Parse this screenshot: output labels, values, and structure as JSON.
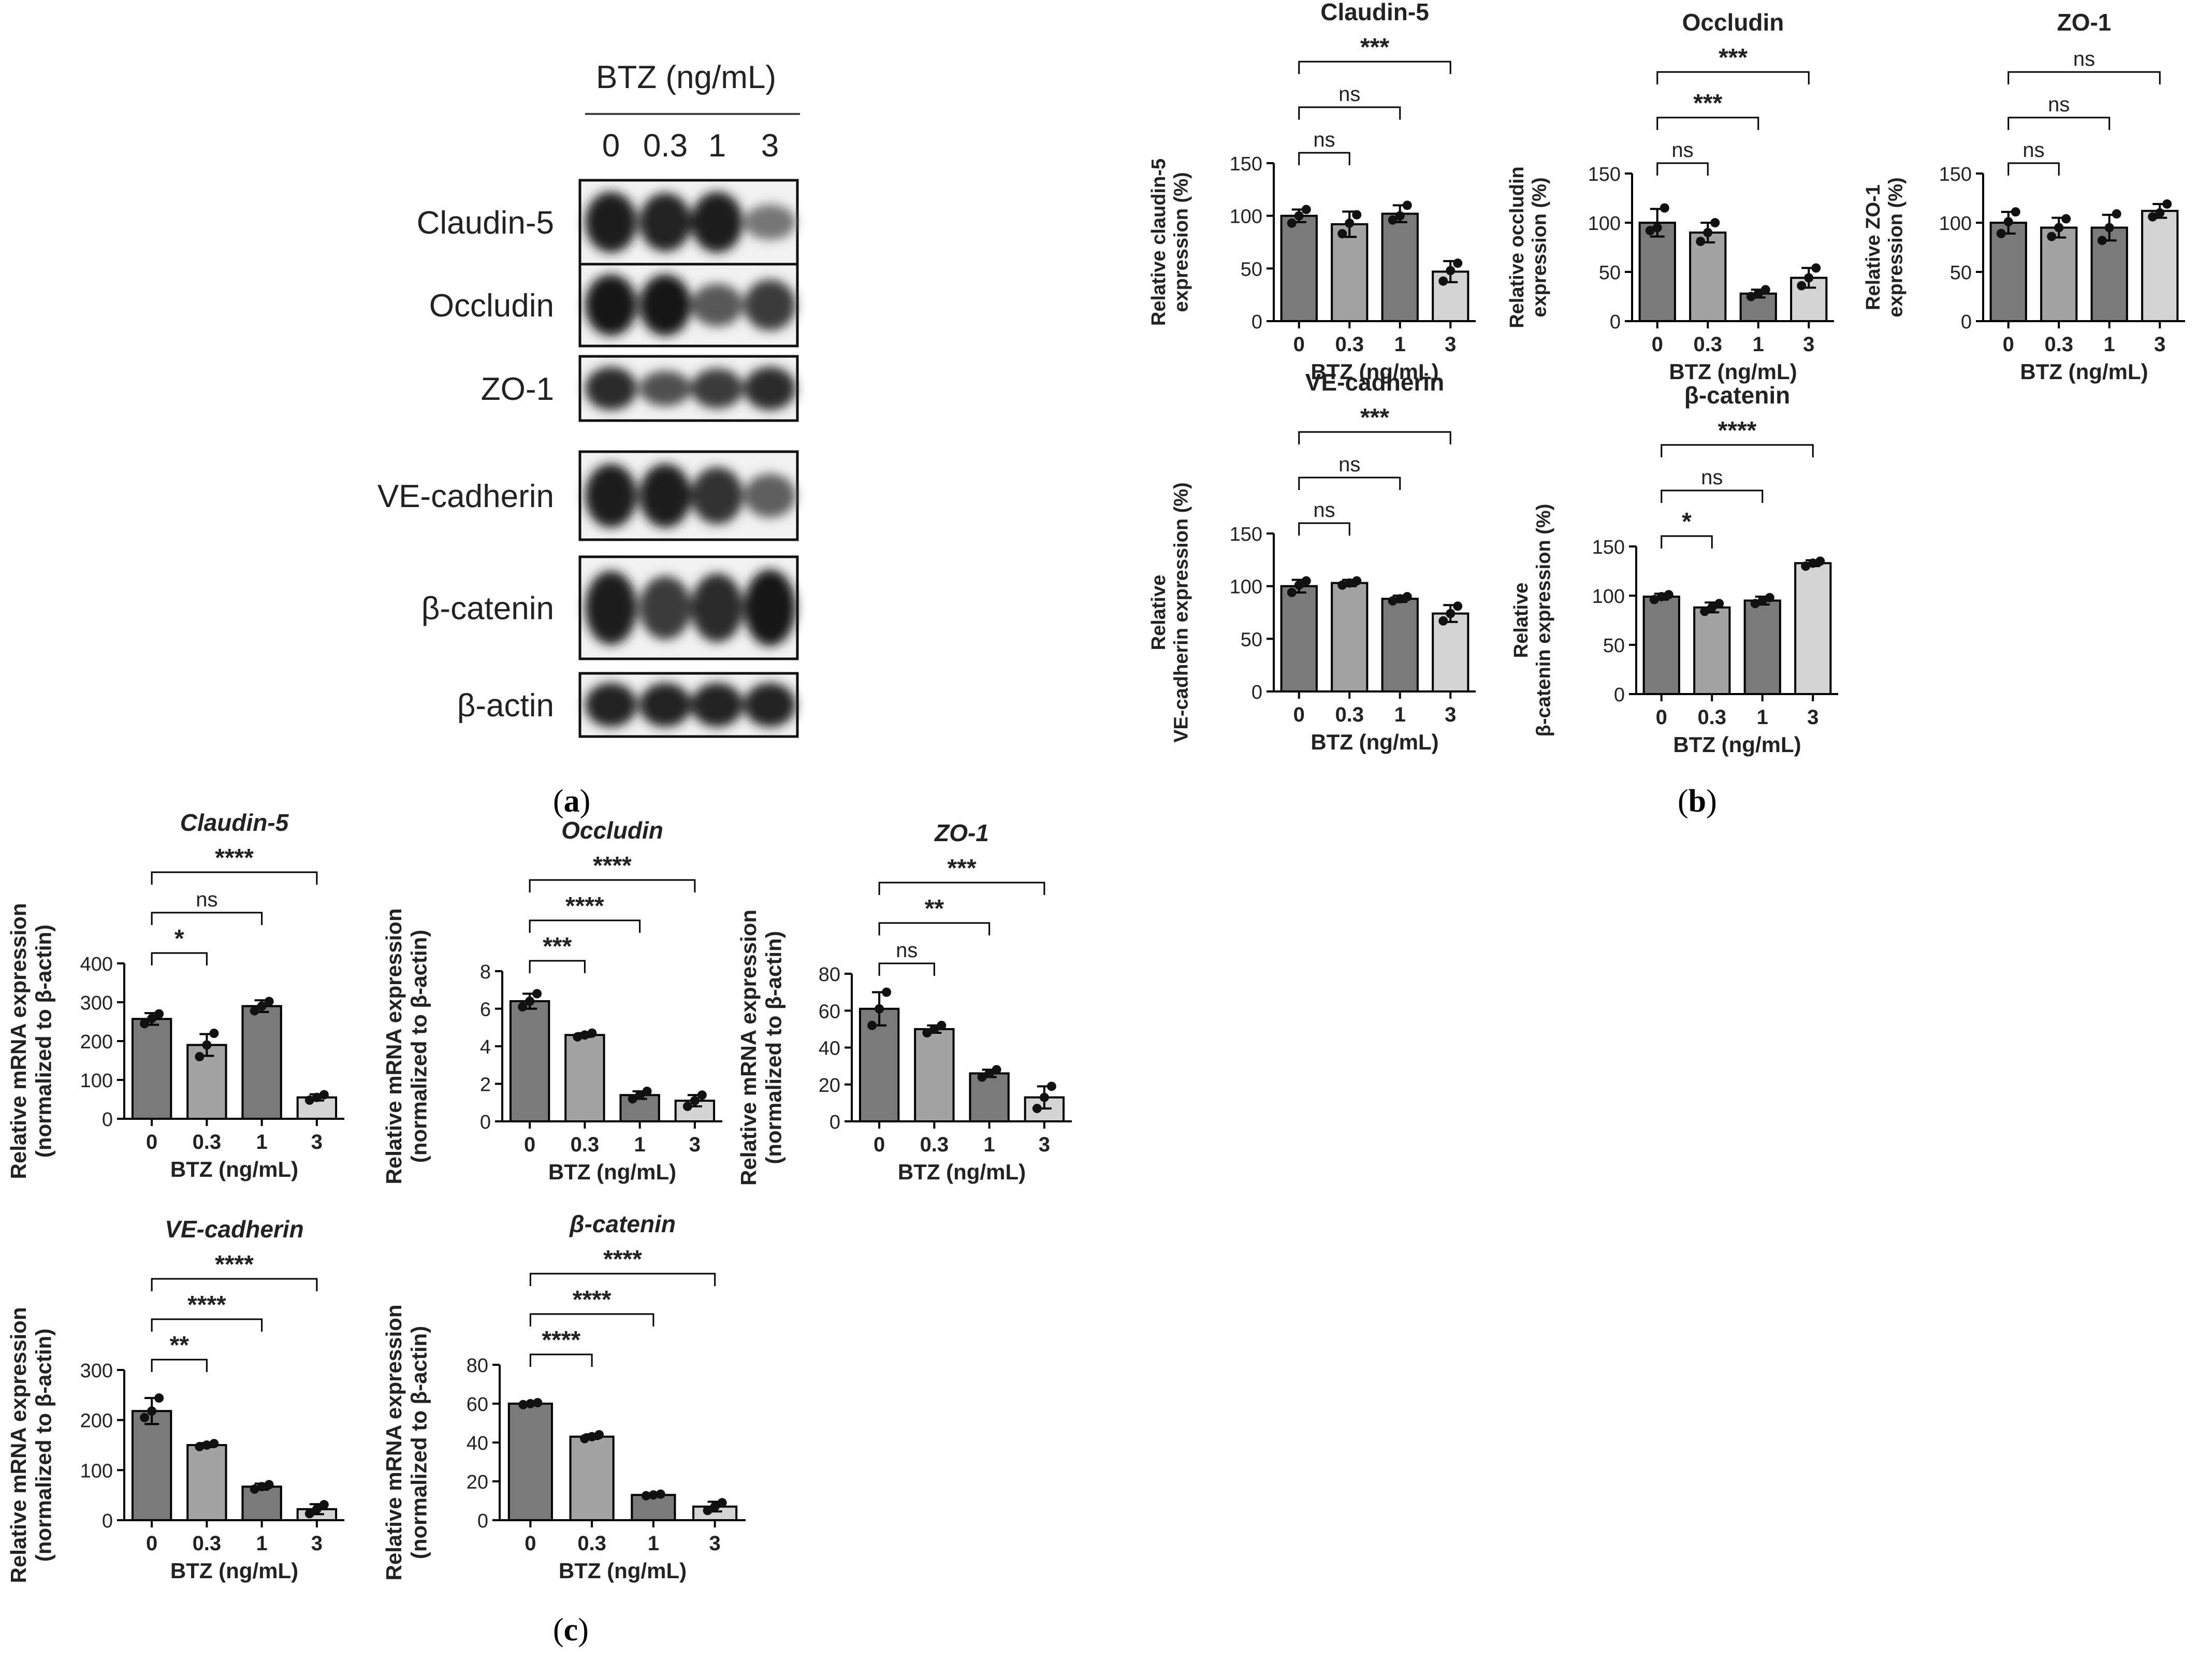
{
  "panel_labels": {
    "a": "a",
    "b": "b",
    "c": "c"
  },
  "western_blot": {
    "header": "BTZ (ng/mL)",
    "lanes": [
      "0",
      "0.3",
      "1",
      "3"
    ],
    "rows": [
      {
        "label": "Claudin-5",
        "intensity": [
          0.95,
          0.9,
          0.95,
          0.35
        ]
      },
      {
        "label": "Occludin",
        "intensity": [
          1.0,
          1.0,
          0.55,
          0.75
        ]
      },
      {
        "label": "ZO-1",
        "intensity": [
          0.85,
          0.6,
          0.75,
          0.85
        ]
      },
      {
        "label": "VE-cadherin",
        "intensity": [
          0.95,
          0.95,
          0.8,
          0.5
        ]
      },
      {
        "label": "β-catenin",
        "intensity": [
          0.95,
          0.75,
          0.85,
          1.0
        ]
      },
      {
        "label": "β-actin",
        "intensity": [
          0.9,
          0.9,
          0.9,
          0.9
        ]
      }
    ]
  },
  "chart_data": [
    {
      "type": "bar",
      "panel": "b",
      "title": "Claudin-5",
      "ylabel": "Relative claudin-5 expression (%)",
      "xlabel": "BTZ (ng/mL)",
      "categories": [
        "0",
        "0.3",
        "1",
        "3"
      ],
      "values": [
        100,
        92,
        102,
        47
      ],
      "errors": [
        6,
        12,
        8,
        10
      ],
      "points": [
        [
          93,
          100,
          106
        ],
        [
          83,
          93,
          101
        ],
        [
          96,
          100,
          110
        ],
        [
          38,
          48,
          55
        ]
      ],
      "ylim": [
        0,
        150
      ],
      "yticks": [
        0,
        50,
        100,
        150
      ],
      "colors": [
        "#7a7a7a",
        "#a3a3a3",
        "#7a7a7a",
        "#d4d4d4"
      ],
      "significance": [
        {
          "to": 1,
          "label": "ns"
        },
        {
          "to": 2,
          "label": "ns"
        },
        {
          "to": 3,
          "label": "***"
        }
      ]
    },
    {
      "type": "bar",
      "panel": "b",
      "title": "Occludin",
      "ylabel": "Relative occludin expression (%)",
      "xlabel": "BTZ (ng/mL)",
      "categories": [
        "0",
        "0.3",
        "1",
        "3"
      ],
      "values": [
        100,
        90,
        28,
        44
      ],
      "errors": [
        14,
        10,
        4,
        10
      ],
      "points": [
        [
          92,
          95,
          115
        ],
        [
          81,
          90,
          100
        ],
        [
          25,
          28,
          32
        ],
        [
          36,
          44,
          54
        ]
      ],
      "ylim": [
        0,
        150
      ],
      "yticks": [
        0,
        50,
        100,
        150
      ],
      "colors": [
        "#7a7a7a",
        "#a3a3a3",
        "#7a7a7a",
        "#d4d4d4"
      ],
      "significance": [
        {
          "to": 1,
          "label": "ns"
        },
        {
          "to": 2,
          "label": "***"
        },
        {
          "to": 3,
          "label": "***"
        }
      ]
    },
    {
      "type": "bar",
      "panel": "b",
      "title": "ZO-1",
      "ylabel": "Relative ZO-1 expression (%)",
      "xlabel": "BTZ (ng/mL)",
      "categories": [
        "0",
        "0.3",
        "1",
        "3"
      ],
      "values": [
        100,
        95,
        95,
        112
      ],
      "errors": [
        11,
        10,
        13,
        7
      ],
      "points": [
        [
          89,
          101,
          111
        ],
        [
          86,
          95,
          104
        ],
        [
          82,
          95,
          109
        ],
        [
          106,
          110,
          119
        ]
      ],
      "ylim": [
        0,
        150
      ],
      "yticks": [
        0,
        50,
        100,
        150
      ],
      "colors": [
        "#7a7a7a",
        "#a3a3a3",
        "#7a7a7a",
        "#d4d4d4"
      ],
      "significance": [
        {
          "to": 1,
          "label": "ns"
        },
        {
          "to": 2,
          "label": "ns"
        },
        {
          "to": 3,
          "label": "ns"
        }
      ]
    },
    {
      "type": "bar",
      "panel": "b",
      "title": "VE-cadherin",
      "ylabel": "Relative VE-cadherin expression (%)",
      "xlabel": "BTZ (ng/mL)",
      "categories": [
        "0",
        "0.3",
        "1",
        "3"
      ],
      "values": [
        100,
        103,
        88,
        74
      ],
      "errors": [
        6,
        3,
        3,
        8
      ],
      "points": [
        [
          94,
          101,
          105
        ],
        [
          101,
          103,
          105
        ],
        [
          86,
          88,
          90
        ],
        [
          67,
          74,
          81
        ]
      ],
      "ylim": [
        0,
        150
      ],
      "yticks": [
        0,
        50,
        100,
        150
      ],
      "colors": [
        "#7a7a7a",
        "#a3a3a3",
        "#7a7a7a",
        "#d4d4d4"
      ],
      "significance": [
        {
          "to": 1,
          "label": "ns"
        },
        {
          "to": 2,
          "label": "ns"
        },
        {
          "to": 3,
          "label": "***"
        }
      ]
    },
    {
      "type": "bar",
      "panel": "b",
      "title": "β-catenin",
      "ylabel": "Relative β-catenin expression (%)",
      "xlabel": "BTZ (ng/mL)",
      "categories": [
        "0",
        "0.3",
        "1",
        "3"
      ],
      "values": [
        99,
        88,
        95,
        133
      ],
      "errors": [
        3,
        5,
        4,
        3
      ],
      "points": [
        [
          96,
          99,
          101
        ],
        [
          84,
          88,
          92
        ],
        [
          92,
          95,
          98
        ],
        [
          130,
          133,
          135
        ]
      ],
      "ylim": [
        0,
        150
      ],
      "yticks": [
        0,
        50,
        100,
        150
      ],
      "colors": [
        "#7a7a7a",
        "#a3a3a3",
        "#7a7a7a",
        "#d4d4d4"
      ],
      "significance": [
        {
          "to": 1,
          "label": "*"
        },
        {
          "to": 2,
          "label": "ns"
        },
        {
          "to": 3,
          "label": "****"
        }
      ]
    },
    {
      "type": "bar",
      "panel": "c",
      "title": "Claudin-5",
      "ylabel": "Relative mRNA expression (normalized to β-actin)",
      "xlabel": "BTZ (ng/mL)",
      "categories": [
        "0",
        "0.3",
        "1",
        "3"
      ],
      "values": [
        257,
        190,
        290,
        55
      ],
      "errors": [
        15,
        28,
        15,
        8
      ],
      "points": [
        [
          245,
          258,
          270
        ],
        [
          160,
          190,
          220
        ],
        [
          278,
          290,
          302
        ],
        [
          48,
          55,
          62
        ]
      ],
      "ylim": [
        0,
        400
      ],
      "yticks": [
        0,
        100,
        200,
        300,
        400
      ],
      "colors": [
        "#7a7a7a",
        "#a3a3a3",
        "#7a7a7a",
        "#d4d4d4"
      ],
      "significance": [
        {
          "to": 1,
          "label": "*"
        },
        {
          "to": 2,
          "label": "ns"
        },
        {
          "to": 3,
          "label": "****"
        }
      ]
    },
    {
      "type": "bar",
      "panel": "c",
      "title": "Occludin",
      "ylabel": "Relative mRNA expression (normalized to β-actin)",
      "xlabel": "BTZ (ng/mL)",
      "categories": [
        "0",
        "0.3",
        "1",
        "3"
      ],
      "values": [
        6.4,
        4.6,
        1.4,
        1.1
      ],
      "errors": [
        0.4,
        0.1,
        0.2,
        0.3
      ],
      "points": [
        [
          6.1,
          6.4,
          6.8
        ],
        [
          4.5,
          4.6,
          4.7
        ],
        [
          1.2,
          1.4,
          1.6
        ],
        [
          0.8,
          1.1,
          1.4
        ]
      ],
      "ylim": [
        0,
        8
      ],
      "yticks": [
        0,
        2,
        4,
        6,
        8
      ],
      "colors": [
        "#7a7a7a",
        "#a3a3a3",
        "#7a7a7a",
        "#d4d4d4"
      ],
      "significance": [
        {
          "to": 1,
          "label": "***"
        },
        {
          "to": 2,
          "label": "****"
        },
        {
          "to": 3,
          "label": "****"
        }
      ]
    },
    {
      "type": "bar",
      "panel": "c",
      "title": "ZO-1",
      "ylabel": "Relative mRNA expression (normalized to β-actin)",
      "xlabel": "BTZ (ng/mL)",
      "categories": [
        "0",
        "0.3",
        "1",
        "3"
      ],
      "values": [
        61,
        50,
        26,
        13
      ],
      "errors": [
        9,
        2,
        2,
        6
      ],
      "points": [
        [
          52,
          61,
          70
        ],
        [
          48,
          50,
          52
        ],
        [
          24,
          26,
          28
        ],
        [
          7,
          13,
          19
        ]
      ],
      "ylim": [
        0,
        80
      ],
      "yticks": [
        0,
        20,
        40,
        60,
        80
      ],
      "colors": [
        "#7a7a7a",
        "#a3a3a3",
        "#7a7a7a",
        "#d4d4d4"
      ],
      "significance": [
        {
          "to": 1,
          "label": "ns"
        },
        {
          "to": 2,
          "label": "**"
        },
        {
          "to": 3,
          "label": "***"
        }
      ]
    },
    {
      "type": "bar",
      "panel": "c",
      "title": "VE-cadherin",
      "ylabel": "Relative mRNA expression (normalized to β-actin)",
      "xlabel": "BTZ (ng/mL)",
      "categories": [
        "0",
        "0.3",
        "1",
        "3"
      ],
      "values": [
        218,
        150,
        67,
        22
      ],
      "errors": [
        26,
        4,
        6,
        10
      ],
      "points": [
        [
          205,
          218,
          244
        ],
        [
          147,
          150,
          153
        ],
        [
          62,
          67,
          71
        ],
        [
          13,
          22,
          31
        ]
      ],
      "ylim": [
        0,
        300
      ],
      "yticks": [
        0,
        100,
        200,
        300
      ],
      "colors": [
        "#7a7a7a",
        "#a3a3a3",
        "#7a7a7a",
        "#d4d4d4"
      ],
      "significance": [
        {
          "to": 1,
          "label": "**"
        },
        {
          "to": 2,
          "label": "****"
        },
        {
          "to": 3,
          "label": "****"
        }
      ]
    },
    {
      "type": "bar",
      "panel": "c",
      "title": "β-catenin",
      "ylabel": "Relative mRNA expression (normalized to β-actin)",
      "xlabel": "BTZ (ng/mL)",
      "categories": [
        "0",
        "0.3",
        "1",
        "3"
      ],
      "values": [
        60,
        43,
        13,
        7
      ],
      "errors": [
        0.6,
        1.2,
        0.6,
        2.5
      ],
      "points": [
        [
          59.5,
          60,
          60.5
        ],
        [
          42,
          43,
          44
        ],
        [
          12.6,
          13,
          13.4
        ],
        [
          5,
          7,
          9
        ]
      ],
      "ylim": [
        0,
        80
      ],
      "yticks": [
        0,
        20,
        40,
        60,
        80
      ],
      "colors": [
        "#7a7a7a",
        "#a3a3a3",
        "#7a7a7a",
        "#d4d4d4"
      ],
      "significance": [
        {
          "to": 1,
          "label": "****"
        },
        {
          "to": 2,
          "label": "****"
        },
        {
          "to": 3,
          "label": "****"
        }
      ]
    }
  ]
}
